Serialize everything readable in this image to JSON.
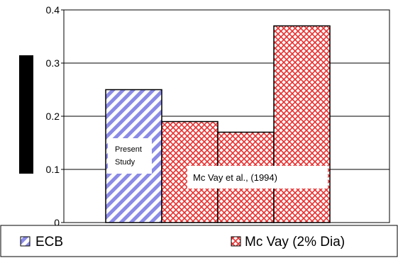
{
  "chart_data": {
    "type": "bar",
    "series": [
      {
        "name": "ECB",
        "color": "#6b6bd6",
        "fill_pattern": "diagonal-stripes",
        "values": [
          0.25
        ]
      },
      {
        "name": "Mc Vay (2% Dia)",
        "color": "#e03030",
        "fill_pattern": "crosshatch",
        "values": [
          0.19,
          0.17,
          0.37
        ]
      }
    ],
    "ylim": [
      0,
      0.4
    ],
    "yticks": [
      "0",
      "0.1",
      "0.2",
      "0.3",
      "0.4"
    ],
    "ylabel": "",
    "xlabel": "",
    "title": "",
    "grid": true,
    "legend_position": "bottom",
    "annotations": {
      "present_study_line1": "Present",
      "present_study_line2": "Study",
      "mcvay": "Mc Vay et al., (1994)"
    }
  }
}
